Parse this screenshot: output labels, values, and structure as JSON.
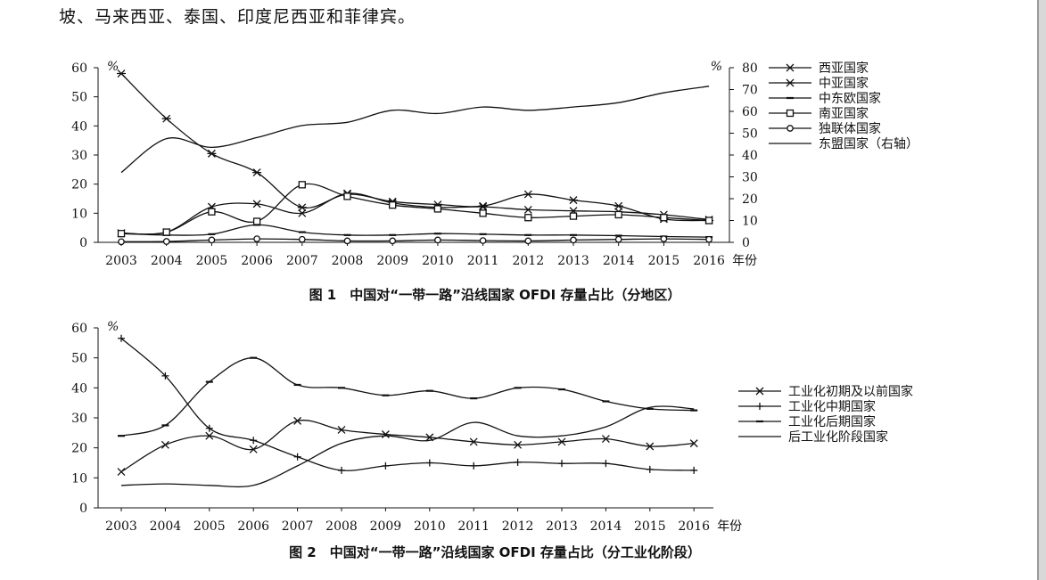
{
  "intro_text": "坡、马来西亚、泰国、印度尼西亚和菲律宾。",
  "figures": [
    {
      "caption": "图 1　中国对“一带一路”沿线国家 OFDI 存量占比（分地区）",
      "chart_data": {
        "type": "line",
        "x": [
          2003,
          2004,
          2005,
          2006,
          2007,
          2008,
          2009,
          2010,
          2011,
          2012,
          2013,
          2014,
          2015,
          2016
        ],
        "x_unit": "年份",
        "y_left": {
          "unit": "%",
          "ylim": [
            0,
            60
          ],
          "ticks": [
            0,
            10,
            20,
            30,
            40,
            50,
            60
          ]
        },
        "y_right": {
          "unit": "%",
          "ylim": [
            0,
            80
          ],
          "ticks": [
            0,
            10,
            20,
            30,
            40,
            50,
            60,
            70,
            80
          ]
        },
        "series": [
          {
            "name": "西亚国家",
            "marker": "x",
            "axis": "left",
            "values": [
              3.2,
              3.5,
              12.2,
              13.2,
              10.0,
              16.8,
              13.5,
              12.0,
              12.2,
              11.2,
              10.8,
              10.5,
              9.5,
              7.8
            ]
          },
          {
            "name": "中亚国家",
            "marker": "star",
            "axis": "left",
            "values": [
              58.0,
              42.5,
              30.5,
              24.0,
              12.0,
              16.5,
              14.0,
              13.0,
              12.5,
              16.5,
              14.5,
              12.5,
              8.0,
              7.5
            ]
          },
          {
            "name": "中东欧国家",
            "marker": "dash",
            "axis": "left",
            "values": [
              3.0,
              2.5,
              2.8,
              6.0,
              3.5,
              2.5,
              2.5,
              3.0,
              2.8,
              2.5,
              2.5,
              2.3,
              2.0,
              1.8
            ]
          },
          {
            "name": "南亚国家",
            "marker": "square",
            "axis": "left",
            "values": [
              3.0,
              3.5,
              10.5,
              7.2,
              19.8,
              15.8,
              12.8,
              11.5,
              10.0,
              8.5,
              9.0,
              9.5,
              8.5,
              7.5
            ]
          },
          {
            "name": "独联体国家",
            "marker": "circle",
            "axis": "left",
            "values": [
              0.2,
              0.3,
              0.8,
              1.2,
              1.0,
              0.5,
              0.5,
              0.8,
              0.6,
              0.5,
              0.8,
              1.0,
              1.2,
              1.0
            ]
          },
          {
            "name": "东盟国家（右轴）",
            "marker": "none",
            "axis": "right",
            "values": [
              32.0,
              47.5,
              43.5,
              48.0,
              53.5,
              55.0,
              60.5,
              59.0,
              62.0,
              60.5,
              62.0,
              64.0,
              68.5,
              71.5
            ]
          }
        ]
      }
    },
    {
      "caption": "图 2　中国对“一带一路”沿线国家 OFDI 存量占比（分工业化阶段）",
      "chart_data": {
        "type": "line",
        "x": [
          2003,
          2004,
          2005,
          2006,
          2007,
          2008,
          2009,
          2010,
          2011,
          2012,
          2013,
          2014,
          2015,
          2016
        ],
        "x_unit": "年份",
        "y_left": {
          "unit": "%",
          "ylim": [
            0,
            60
          ],
          "ticks": [
            0,
            10,
            20,
            30,
            40,
            50,
            60
          ]
        },
        "series": [
          {
            "name": "工业化初期及以前国家",
            "marker": "x",
            "values": [
              12.0,
              21.0,
              24.0,
              19.5,
              29.0,
              26.0,
              24.5,
              23.5,
              22.0,
              21.0,
              22.0,
              23.0,
              20.5,
              21.5
            ]
          },
          {
            "name": "工业化中期国家",
            "marker": "plus",
            "values": [
              56.5,
              44.0,
              26.5,
              22.5,
              17.0,
              12.5,
              14.0,
              15.0,
              14.0,
              15.2,
              14.8,
              14.8,
              12.8,
              12.5
            ]
          },
          {
            "name": "工业化后期国家",
            "marker": "dash",
            "values": [
              24.0,
              27.5,
              42.0,
              50.0,
              41.0,
              40.0,
              37.5,
              39.0,
              36.5,
              40.0,
              39.5,
              35.5,
              33.0,
              32.5
            ]
          },
          {
            "name": "后工业化阶段国家",
            "marker": "none",
            "values": [
              7.5,
              8.0,
              7.5,
              7.5,
              14.0,
              21.5,
              24.0,
              22.5,
              28.5,
              24.0,
              24.0,
              27.0,
              33.5,
              33.0
            ]
          }
        ]
      }
    }
  ]
}
